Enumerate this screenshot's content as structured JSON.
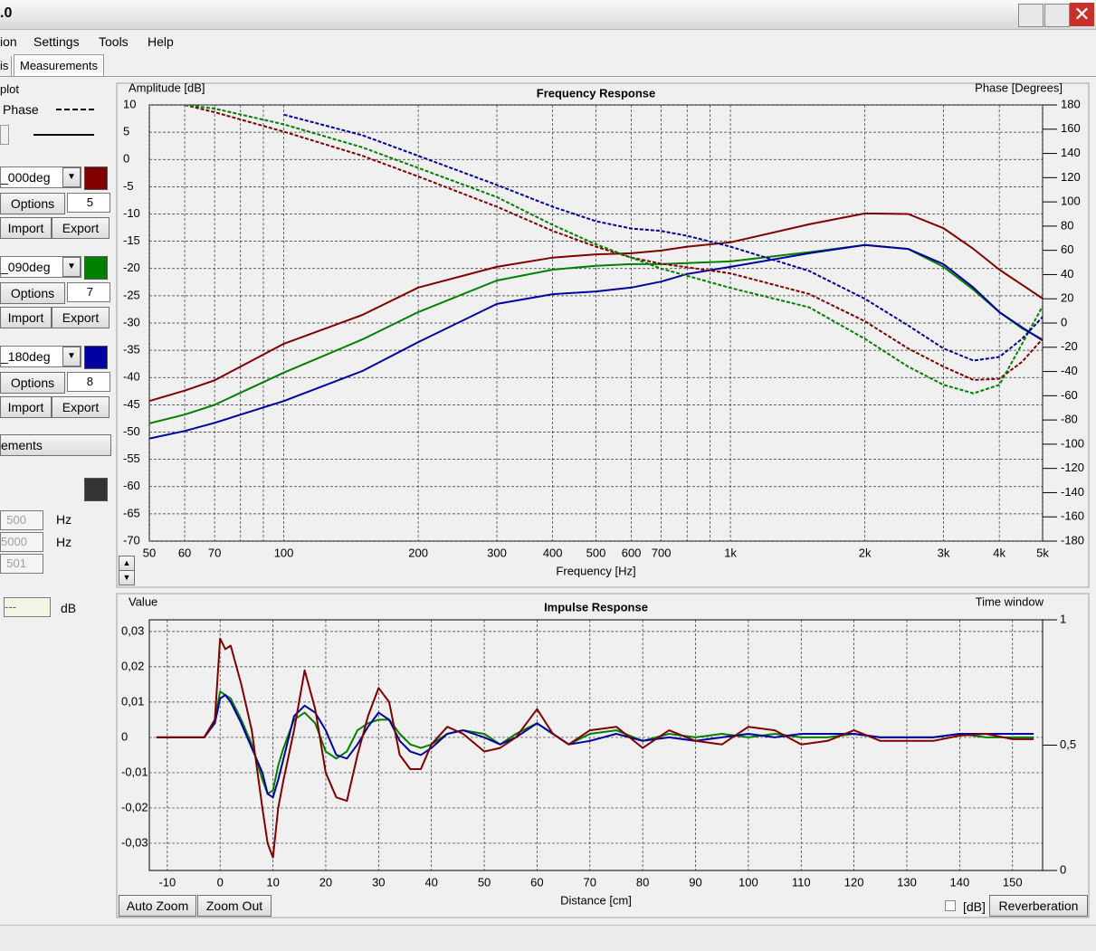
{
  "window": {
    "title": ".0",
    "menu": [
      "ion",
      "Settings",
      "Tools",
      "Help"
    ],
    "tabs": [
      "is",
      "Measurements"
    ],
    "panel": {
      "group": "plot",
      "phase": "Phase",
      "measurements": [
        {
          "name": "_000deg",
          "color": "#800000",
          "options": "Options",
          "smoothing": 5,
          "import": "Import",
          "export": "Export"
        },
        {
          "name": "_090deg",
          "color": "#008000",
          "options": "Options",
          "smoothing": 7,
          "import": "Import",
          "export": "Export"
        },
        {
          "name": "_180deg",
          "color": "#0000a0",
          "options": "Options",
          "smoothing": 8,
          "import": "Import",
          "export": "Export"
        }
      ],
      "all": "ements",
      "filter_color": "#333333",
      "low": 500,
      "low_unit": "Hz",
      "high": 5000,
      "high_unit": "Hz",
      "n": 501,
      "level": "---",
      "level_unit": "dB"
    },
    "buttons": {
      "auto_zoom": "Auto Zoom",
      "zoom_out": "Zoom Out",
      "db": "[dB]",
      "reverberation": "Reverberation"
    }
  },
  "chart_data": [
    {
      "type": "line",
      "title": "Frequency Response",
      "ylabel": "Amplitude [dB]",
      "y2label": "Phase [Degrees]",
      "xlabel": "Frequency [Hz]",
      "xscale": "log",
      "grid": true,
      "xlim": [
        50,
        5000
      ],
      "xticks": [
        50,
        60,
        70,
        100,
        200,
        300,
        400,
        500,
        600,
        700,
        {
          "value": 1000,
          "label": "1k"
        },
        {
          "value": 2000,
          "label": "2k"
        },
        {
          "value": 3000,
          "label": "3k"
        },
        {
          "value": 4000,
          "label": "4k"
        },
        {
          "value": 5000,
          "label": "5k"
        }
      ],
      "xminor": [
        80,
        90,
        800,
        900
      ],
      "ylim": [
        -70,
        10
      ],
      "yticks": [
        -70,
        -65,
        -60,
        -55,
        -50,
        -45,
        -40,
        -35,
        -30,
        -25,
        -20,
        -15,
        -10,
        -5,
        0,
        5,
        10
      ],
      "y2lim": [
        -180,
        180
      ],
      "y2ticks": [
        -180,
        -160,
        -140,
        -120,
        -100,
        -80,
        -60,
        -40,
        -20,
        0,
        20,
        40,
        60,
        80,
        100,
        120,
        140,
        160,
        180
      ],
      "x": [
        50,
        60,
        70,
        100,
        150,
        200,
        300,
        400,
        500,
        600,
        700,
        800,
        1000,
        1500,
        2000,
        2500,
        3000,
        3500,
        4000,
        4500,
        5000
      ],
      "series": [
        {
          "color": "#800000",
          "linestyle": "solid",
          "values": [
            -44.3,
            -42.4,
            -40.5,
            -33.8,
            -28.5,
            -23.5,
            -19.7,
            -18,
            -17.4,
            -17.2,
            -16.7,
            -16,
            -15.2,
            -11.9,
            -9.9,
            -10,
            -12.6,
            -16.4,
            -20.2,
            -23,
            -25.5
          ]
        },
        {
          "color": "#008000",
          "linestyle": "solid",
          "values": [
            -48.4,
            -46.8,
            -45,
            -39.1,
            -33,
            -28,
            -22.2,
            -20.2,
            -19.5,
            -19.2,
            -19.2,
            -19,
            -18.7,
            -17,
            -15.7,
            -16.4,
            -19.7,
            -23.9,
            -28,
            -31,
            -33
          ]
        },
        {
          "color": "#0000a0",
          "linestyle": "solid",
          "values": [
            -51.2,
            -49.8,
            -48.3,
            -44.3,
            -38.8,
            -33.5,
            -26.5,
            -24.7,
            -24.2,
            -23.5,
            -22.4,
            -21,
            -19.7,
            -17.2,
            -15.7,
            -16.4,
            -19.2,
            -23.5,
            -28,
            -30.8,
            -33.2
          ]
        },
        {
          "color": "#800000",
          "linestyle": "dashed",
          "axis": "y2",
          "values": [
            null,
            180,
            174,
            158,
            138,
            121,
            96,
            76,
            63,
            54,
            49,
            46,
            41,
            24,
            1.5,
            -21,
            -36,
            -47,
            -46,
            -32,
            -13
          ]
        },
        {
          "color": "#008000",
          "linestyle": "dashed",
          "axis": "y2",
          "values": [
            null,
            180,
            177,
            164,
            145,
            128,
            104,
            81,
            65,
            54,
            45,
            39,
            29,
            13,
            -13,
            -36,
            -51,
            -58,
            -51,
            -17,
            14
          ]
        },
        {
          "color": "#0000a0",
          "linestyle": "dashed",
          "axis": "y2",
          "values": [
            null,
            null,
            null,
            172,
            155,
            138,
            114,
            96,
            84,
            78,
            76,
            72,
            63,
            43,
            20,
            -2,
            -21,
            -31,
            -28,
            -13,
            5
          ]
        }
      ]
    },
    {
      "type": "line",
      "title": "Impulse Response",
      "ylabel": "Value",
      "y2label": "Time window",
      "xlabel": "Distance [cm]",
      "grid": true,
      "xlim": [
        -13.4,
        155.7
      ],
      "xticks": [
        -10,
        0,
        10,
        20,
        30,
        40,
        50,
        60,
        70,
        80,
        90,
        100,
        110,
        120,
        130,
        140,
        150
      ],
      "ylim": [
        -0.0377,
        0.0333
      ],
      "yticks": [
        {
          "value": -0.03,
          "label": "-0,03"
        },
        {
          "value": -0.02,
          "label": "-0,02"
        },
        {
          "value": -0.01,
          "label": "-0,01"
        },
        0,
        {
          "value": 0.01,
          "label": "0,01"
        },
        {
          "value": 0.02,
          "label": "0,02"
        },
        {
          "value": 0.03,
          "label": "0,03"
        }
      ],
      "y2lim": [
        0,
        1
      ],
      "y2ticks": [
        0,
        {
          "value": 0.5,
          "label": "0,5"
        },
        1
      ],
      "x": [
        -12,
        -5,
        -3,
        -1,
        0,
        1,
        2,
        4,
        6,
        8,
        9,
        10,
        11,
        12,
        14,
        16,
        18,
        20,
        22,
        24,
        26,
        28,
        30,
        32,
        34,
        36,
        38,
        40,
        43,
        46,
        50,
        53,
        56,
        60,
        63,
        66,
        70,
        75,
        80,
        85,
        90,
        95,
        100,
        105,
        110,
        115,
        120,
        125,
        130,
        135,
        140,
        145,
        150,
        154
      ],
      "series": [
        {
          "color": "#008000",
          "linestyle": "solid",
          "values": [
            0,
            0,
            0,
            0.005,
            0.013,
            0.012,
            0.011,
            0.005,
            -0.002,
            -0.012,
            -0.016,
            -0.015,
            -0.008,
            -0.003,
            0.005,
            0.007,
            0.004,
            -0.004,
            -0.006,
            -0.004,
            0.002,
            0.004,
            0.005,
            0.005,
            0.001,
            -0.002,
            -0.003,
            -0.002,
            0.001,
            0.002,
            0.001,
            -0.002,
            0.001,
            0.004,
            0.001,
            -0.002,
            0.001,
            0.002,
            -0.001,
            0.001,
            0,
            0.001,
            0,
            0.001,
            0,
            0,
            0.001,
            0,
            0,
            0,
            0.001,
            0,
            0,
            0
          ]
        },
        {
          "color": "#0000a0",
          "linestyle": "solid",
          "values": [
            0,
            0,
            0,
            0.004,
            0.011,
            0.012,
            0.01,
            0.004,
            -0.003,
            -0.01,
            -0.016,
            -0.017,
            -0.012,
            -0.006,
            0.006,
            0.009,
            0.007,
            0.002,
            -0.005,
            -0.006,
            -0.002,
            0.003,
            0.007,
            0.005,
            -0.001,
            -0.004,
            -0.005,
            -0.003,
            0.001,
            0.002,
            0,
            -0.002,
            0,
            0.004,
            0.001,
            -0.002,
            -0.001,
            0.001,
            -0.001,
            0,
            -0.001,
            0,
            0.001,
            0,
            0.001,
            0.001,
            0.001,
            0,
            0,
            0,
            0.001,
            0.001,
            0.001,
            0.001
          ]
        },
        {
          "color": "#800000",
          "linestyle": "solid",
          "values": [
            0,
            0,
            0,
            0.005,
            0.028,
            0.025,
            0.026,
            0.015,
            0.002,
            -0.02,
            -0.03,
            -0.034,
            -0.02,
            -0.012,
            0.002,
            0.019,
            0.008,
            -0.01,
            -0.017,
            -0.018,
            -0.005,
            0.006,
            0.014,
            0.01,
            -0.005,
            -0.009,
            -0.009,
            -0.002,
            0.003,
            0.001,
            -0.004,
            -0.003,
            0,
            0.008,
            0.001,
            -0.002,
            0.002,
            0.003,
            -0.003,
            0.002,
            -0.001,
            -0.002,
            0.003,
            0.002,
            -0.002,
            -0.001,
            0.002,
            -0.001,
            -0.001,
            -0.001,
            0.0005,
            0.001,
            -0.0005,
            -0.0005
          ]
        }
      ]
    }
  ]
}
